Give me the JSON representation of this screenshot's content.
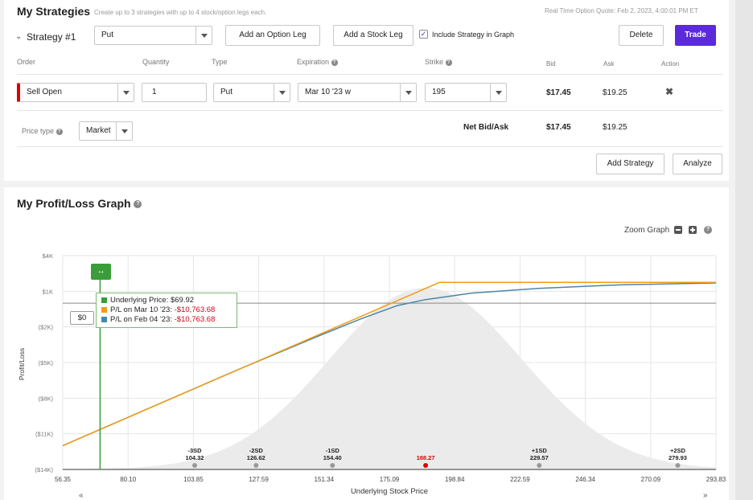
{
  "strategies": {
    "title": "My Strategies",
    "subtitle": "Create up to 3 strategies with up to 4 stock/option legs each.",
    "quote_time": "Real Time Option Quote: Feb 2, 2023, 4:00:01 PM ET",
    "strategy_name": "Strategy #1",
    "strategy_type": "Put",
    "add_option_leg": "Add an Option Leg",
    "add_stock_leg": "Add a Stock Leg",
    "include_in_graph": "Include Strategy in Graph",
    "delete": "Delete",
    "trade": "Trade",
    "columns": {
      "order": "Order",
      "quantity": "Quantity",
      "type": "Type",
      "expiration": "Expiration",
      "strike": "Strike",
      "bid": "Bid",
      "ask": "Ask",
      "action": "Action"
    },
    "leg": {
      "order": "Sell Open",
      "quantity": "1",
      "type": "Put",
      "expiration": "Mar 10 '23 w",
      "strike": "195",
      "bid": "$17.45",
      "ask": "$19.25"
    },
    "price_type_label": "Price type",
    "price_type": "Market",
    "net_label": "Net Bid/Ask",
    "net_bid": "$17.45",
    "net_ask": "$19.25",
    "add_strategy": "Add Strategy",
    "analyze": "Analyze"
  },
  "graph": {
    "title": "My Profit/Loss Graph",
    "zoom_label": "Zoom Graph",
    "zero_label": "$0",
    "tooltip": {
      "underlying_label": "Underlying Price: $69.92",
      "pl_expiry_label": "P/L on Mar 10 '23: ",
      "pl_expiry_value": "-$10,763.68",
      "pl_today_label": "P/L on Feb 04 '23: ",
      "pl_today_value": "-$10,763.68"
    },
    "colors": {
      "expiry": "#f39c12",
      "today": "#4a86a8",
      "marker": "#3a9d3a",
      "current": "#e00000"
    }
  },
  "chart_data": {
    "type": "line",
    "xlabel": "Underlying Stock Price",
    "ylabel": "Profit/Loss",
    "xlim": [
      56.35,
      293.83
    ],
    "ylim": [
      -14000,
      4000
    ],
    "x_ticks": [
      "56.35",
      "80.10",
      "103.85",
      "127.59",
      "151.34",
      "175.09",
      "198.84",
      "222.59",
      "246.34",
      "270.09",
      "293.83"
    ],
    "y_ticks": [
      {
        "value": 4000,
        "label": "$4K"
      },
      {
        "value": 1000,
        "label": "$1K"
      },
      {
        "value": -2000,
        "label": "($2K)"
      },
      {
        "value": -5000,
        "label": "($5K)"
      },
      {
        "value": -8000,
        "label": "($8K)"
      },
      {
        "value": -11000,
        "label": "($11K)"
      },
      {
        "value": -14000,
        "label": "($14K)"
      }
    ],
    "series": [
      {
        "name": "P/L on Mar 10 '23",
        "x": [
          56.35,
          193.3,
          293.83
        ],
        "y": [
          -12000,
          1745,
          1745
        ]
      },
      {
        "name": "P/L on Feb 04 '23",
        "x": [
          56.35,
          120,
          150,
          165,
          178,
          188.27,
          205,
          230,
          260,
          293.83
        ],
        "y": [
          -12000,
          -5600,
          -2700,
          -1300,
          -200,
          300,
          850,
          1250,
          1550,
          1700
        ]
      }
    ],
    "sd_markers": [
      {
        "label": "-3SD",
        "value": 104.32,
        "text": "104.32"
      },
      {
        "label": "-2SD",
        "value": 126.62,
        "text": "126.62"
      },
      {
        "label": "-1SD",
        "value": 154.4,
        "text": "154.40"
      },
      {
        "label": "",
        "value": 188.27,
        "text": "188.27",
        "current": true
      },
      {
        "label": "+1SD",
        "value": 229.57,
        "text": "229.57"
      },
      {
        "label": "+2SD",
        "value": 279.93,
        "text": "279.93"
      }
    ],
    "marker_price": 69.92,
    "distribution_mean": 188.27,
    "distribution_sd": 35
  }
}
